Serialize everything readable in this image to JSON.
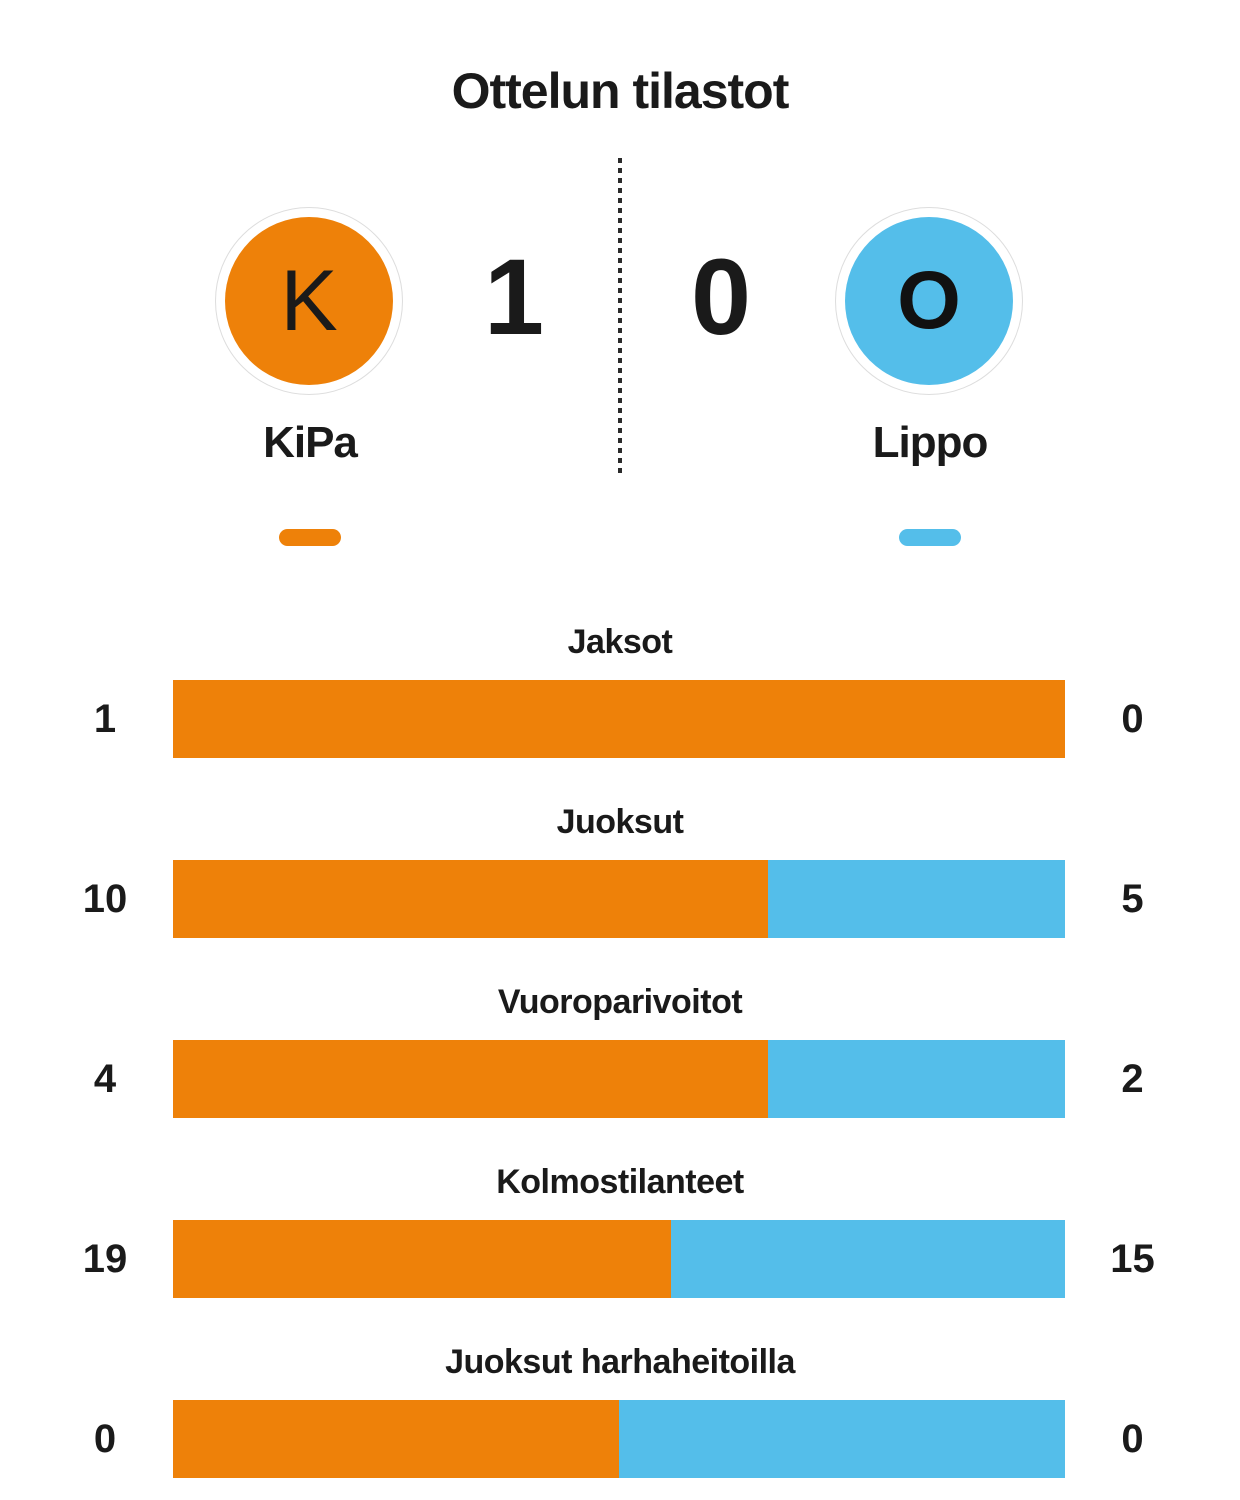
{
  "title": "Ottelun tilastot",
  "colors": {
    "home": "#EE8109",
    "away": "#54BEEA",
    "text": "#1A1A1A",
    "divider": "#2B2B2B",
    "logo_ring": "#DDDDDD"
  },
  "match": {
    "home": {
      "name": "KiPa",
      "score": "1",
      "logo_letter": "K"
    },
    "away": {
      "name": "Lippo",
      "score": "0",
      "logo_letter": "O"
    }
  },
  "chart_data": {
    "type": "bar",
    "subtype": "horizontal-proportional-stacked",
    "title": "Ottelun tilastot",
    "categories": [
      "Jaksot",
      "Juoksut",
      "Vuoroparivoitot",
      "Kolmostilanteet",
      "Juoksut harhaheitoilla"
    ],
    "series": [
      {
        "name": "KiPa",
        "color": "#EE8109",
        "values": [
          1,
          10,
          4,
          19,
          0
        ]
      },
      {
        "name": "Lippo",
        "color": "#54BEEA",
        "values": [
          0,
          5,
          2,
          15,
          0
        ]
      }
    ],
    "layout": {
      "value_labels": "numeric values shown left (KiPa) and right (Lippo) of each bar",
      "category_labels": "centered above each bar",
      "zero_total_rendering": "bar split into equal halves when both values are 0"
    }
  }
}
